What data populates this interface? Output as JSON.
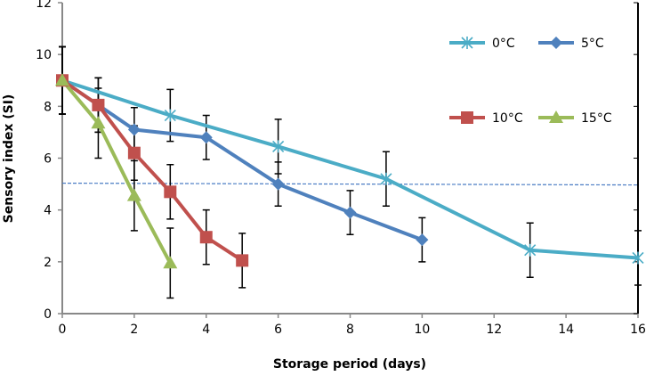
{
  "chart_data": {
    "type": "line",
    "title": "",
    "xlabel": "Storage period (days)",
    "ylabel": "Sensory index (SI)",
    "xlim": [
      0,
      16
    ],
    "ylim": [
      0,
      12
    ],
    "xticks": [
      0,
      2,
      4,
      6,
      8,
      10,
      12,
      14,
      16
    ],
    "yticks": [
      0,
      2,
      4,
      6,
      8,
      10,
      12
    ],
    "grid": false,
    "legend_position": "top-right",
    "reference_line": {
      "y": 5,
      "style": "dashed",
      "color": "#4a7cc4"
    },
    "series": [
      {
        "name": "0°C",
        "color": "#4bacc6",
        "marker": "star",
        "x": [
          0,
          3,
          6,
          9,
          13,
          16
        ],
        "y": [
          9,
          7.65,
          6.45,
          5.2,
          2.45,
          2.15
        ],
        "err": [
          1.3,
          1.0,
          1.05,
          1.05,
          1.05,
          1.05
        ]
      },
      {
        "name": "5°C",
        "color": "#4f81bd",
        "marker": "diamond",
        "x": [
          0,
          1,
          2,
          4,
          6,
          8,
          10
        ],
        "y": [
          9,
          8.05,
          7.1,
          6.8,
          5.0,
          3.9,
          2.85
        ],
        "err": [
          1.3,
          1.05,
          0.85,
          0.85,
          0.85,
          0.85,
          0.85
        ]
      },
      {
        "name": "10°C",
        "color": "#c0504d",
        "marker": "square",
        "x": [
          0,
          1,
          2,
          3,
          4,
          5
        ],
        "y": [
          9,
          8.05,
          6.2,
          4.7,
          2.95,
          2.05
        ],
        "err": [
          1.3,
          1.05,
          1.05,
          1.05,
          1.05,
          1.05
        ]
      },
      {
        "name": "15°C",
        "color": "#9bbb59",
        "marker": "triangle",
        "x": [
          0,
          1,
          2,
          3
        ],
        "y": [
          9,
          7.35,
          4.55,
          1.95
        ],
        "err": [
          1.3,
          1.35,
          1.35,
          1.35
        ]
      }
    ]
  }
}
